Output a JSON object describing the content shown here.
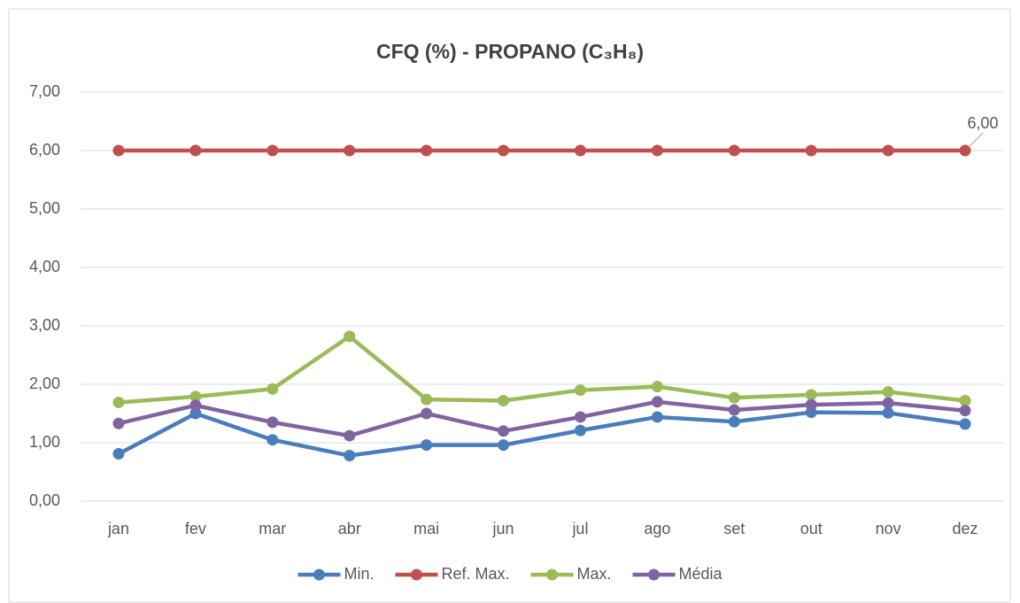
{
  "chart_data": {
    "type": "line",
    "title": "CFQ (%) - PROPANO (C₃H₈)",
    "categories": [
      "jan",
      "fev",
      "mar",
      "abr",
      "mai",
      "jun",
      "jul",
      "ago",
      "set",
      "out",
      "nov",
      "dez"
    ],
    "series": [
      {
        "name": "Min.",
        "color": "#4a7ebb",
        "values": [
          0.81,
          1.5,
          1.05,
          0.78,
          0.96,
          0.96,
          1.21,
          1.44,
          1.36,
          1.52,
          1.51,
          1.32
        ]
      },
      {
        "name": "Ref. Max.",
        "color": "#c0504d",
        "values": [
          6,
          6,
          6,
          6,
          6,
          6,
          6,
          6,
          6,
          6,
          6,
          6
        ],
        "value_labels": [
          null,
          null,
          null,
          null,
          null,
          null,
          null,
          null,
          null,
          null,
          null,
          "6,00"
        ]
      },
      {
        "name": "Max.",
        "color": "#9bbb59",
        "values": [
          1.69,
          1.79,
          1.92,
          2.82,
          1.74,
          1.72,
          1.9,
          1.96,
          1.77,
          1.82,
          1.87,
          1.72
        ]
      },
      {
        "name": "Média",
        "color": "#8064a2",
        "values": [
          1.33,
          1.64,
          1.35,
          1.12,
          1.5,
          1.2,
          1.44,
          1.7,
          1.56,
          1.65,
          1.68,
          1.55
        ]
      }
    ],
    "ylim": [
      0,
      7
    ],
    "yticks": [
      {
        "value": 0,
        "label": "0,00"
      },
      {
        "value": 1,
        "label": "1,00"
      },
      {
        "value": 2,
        "label": "2,00"
      },
      {
        "value": 3,
        "label": "3,00"
      },
      {
        "value": 4,
        "label": "4,00"
      },
      {
        "value": 5,
        "label": "5,00"
      },
      {
        "value": 6,
        "label": "6,00"
      },
      {
        "value": 7,
        "label": "7,00"
      }
    ],
    "grid": true,
    "legend": "bottom"
  }
}
